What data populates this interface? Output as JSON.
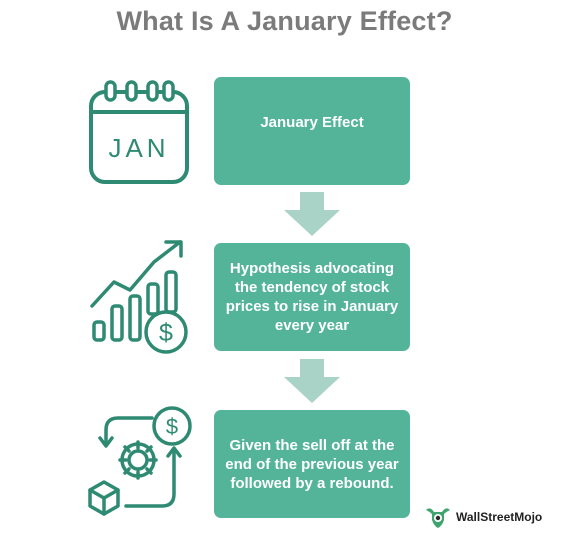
{
  "title": "What Is A January Effect?",
  "colors": {
    "accent": "#54b49a",
    "arrow": "#a9d3c6",
    "icon_stroke": "#2e8a72",
    "title": "#7b7b7b"
  },
  "steps": [
    {
      "text": "January Effect",
      "icon": "calendar-icon"
    },
    {
      "text": "Hypothesis advocating the tendency of stock prices to rise in January every year",
      "icon": "stock-growth-icon"
    },
    {
      "text": "Given the sell off at the end of the previous year followed by a rebound.",
      "icon": "cycle-process-icon"
    }
  ],
  "calendar_label": "JAN",
  "brand": {
    "name": "WallStreetMojo"
  }
}
